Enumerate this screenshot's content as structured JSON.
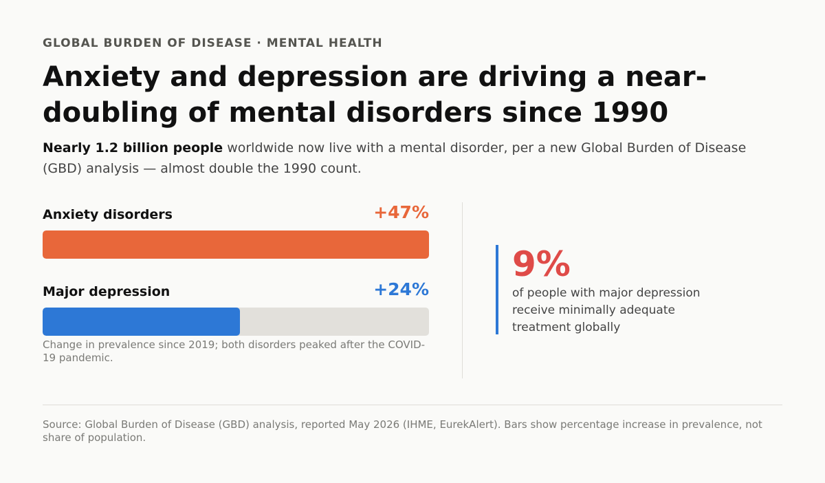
{
  "kicker": "GLOBAL BURDEN OF DISEASE · MENTAL HEALTH",
  "headline": "Anxiety and depression are driving a near-doubling of mental disorders since 1990",
  "dek": {
    "bold": "Nearly 1.2 billion people",
    "rest": " worldwide now live with a mental disorder, per a new Global Burden of Disease (GBD) analysis — almost double the 1990 count."
  },
  "colors": {
    "anxiety": "#e8673a",
    "depression": "#2d78d6",
    "stat": "#df4b48",
    "track": "#e2e0db"
  },
  "chart_data": {
    "type": "bar",
    "orientation": "horizontal",
    "categories": [
      "Anxiety disorders",
      "Major depression"
    ],
    "values": [
      47,
      24
    ],
    "value_labels": [
      "+47%",
      "+24%"
    ],
    "unit": "%",
    "xlim": [
      0,
      47
    ],
    "note": "Change in prevalence since 2019; both disorders peaked after the COVID-19 pandemic."
  },
  "stat": {
    "number": "9%",
    "text": "of people with major depression receive minimally adequate treatment globally"
  },
  "source": "Source: Global Burden of Disease (GBD) analysis, reported May 2026 (IHME, EurekAlert). Bars show percentage increase in prevalence, not share of population."
}
